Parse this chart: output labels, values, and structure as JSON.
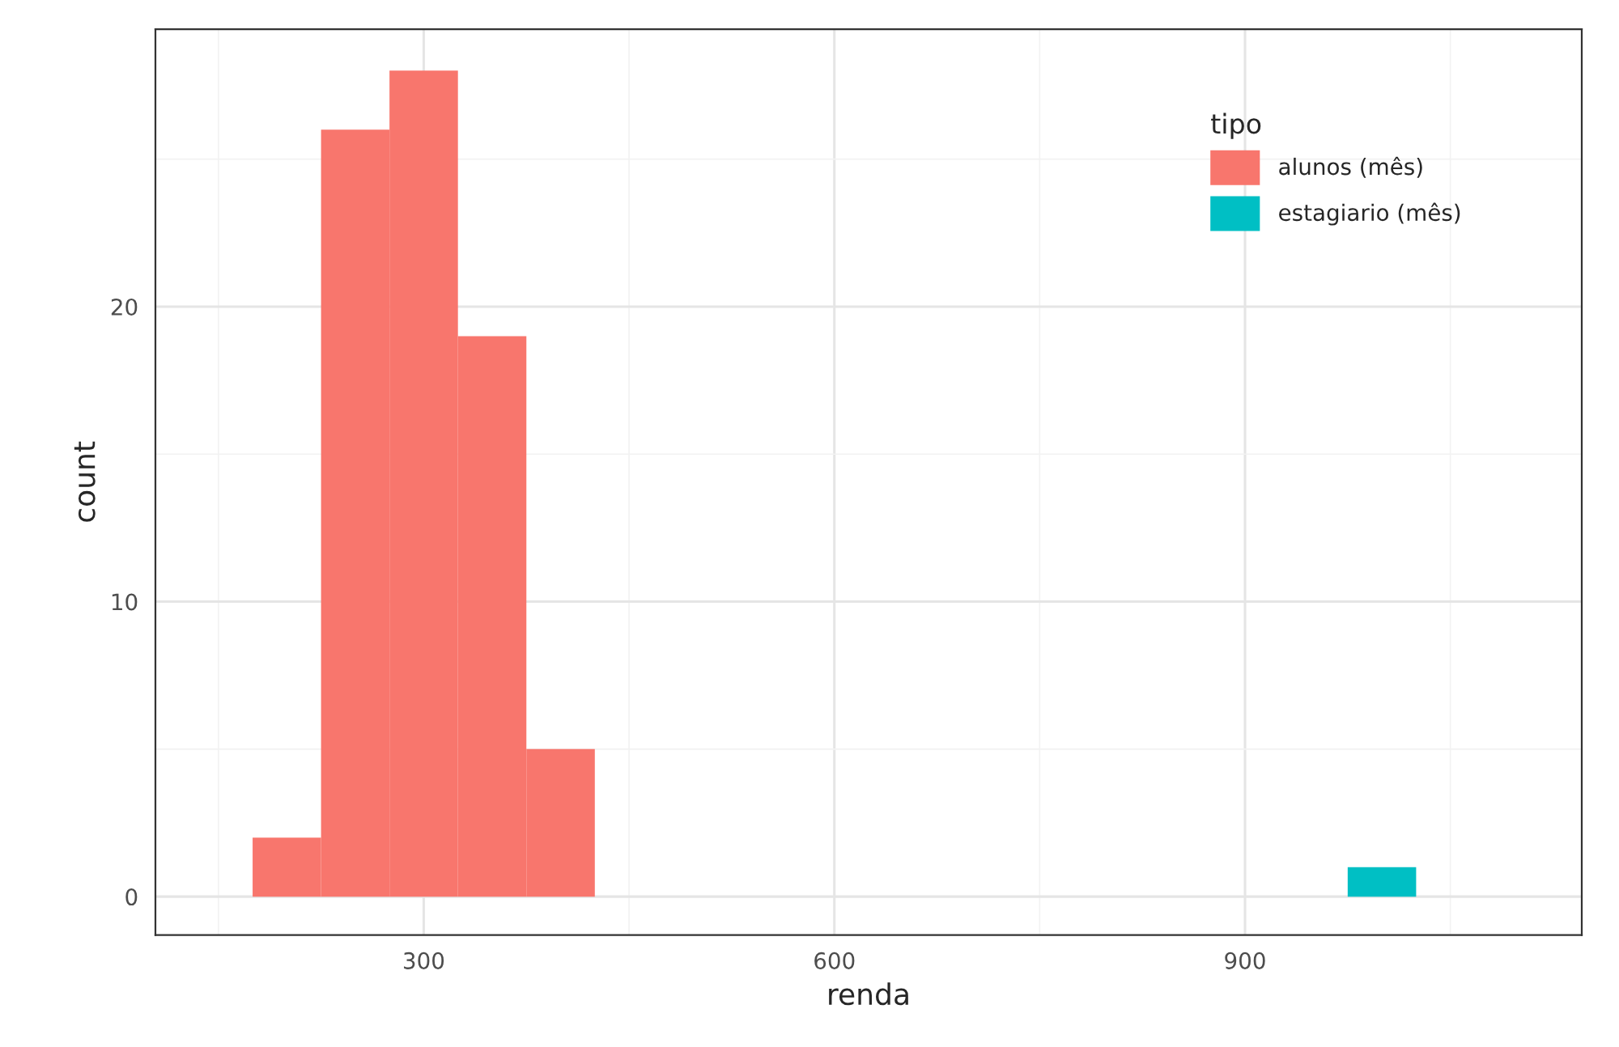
{
  "chart_data": {
    "type": "histogram",
    "xlabel": "renda",
    "ylabel": "count",
    "legend_title": "tipo",
    "series": [
      {
        "name": "alunos (mês)",
        "color": "#f8766d",
        "values": [
          2,
          26,
          28,
          19,
          5,
          null,
          null,
          null,
          null,
          null,
          null,
          null,
          null,
          null,
          null,
          null,
          null
        ]
      },
      {
        "name": "estagiario (mês)",
        "color": "#00bfc4",
        "values": [
          null,
          null,
          null,
          null,
          null,
          null,
          null,
          null,
          null,
          null,
          null,
          null,
          null,
          null,
          null,
          null,
          1
        ]
      }
    ],
    "bins": [
      175,
      225,
      275,
      325,
      375,
      425,
      475,
      525,
      575,
      625,
      675,
      725,
      775,
      825,
      875,
      925,
      975,
      1025
    ],
    "xlim": [
      104,
      1146
    ],
    "ylim": [
      -1.3,
      29.4
    ],
    "xticks": [
      300,
      600,
      900
    ],
    "yticks": [
      0,
      10,
      20
    ],
    "grid": true,
    "legend": "top right"
  }
}
